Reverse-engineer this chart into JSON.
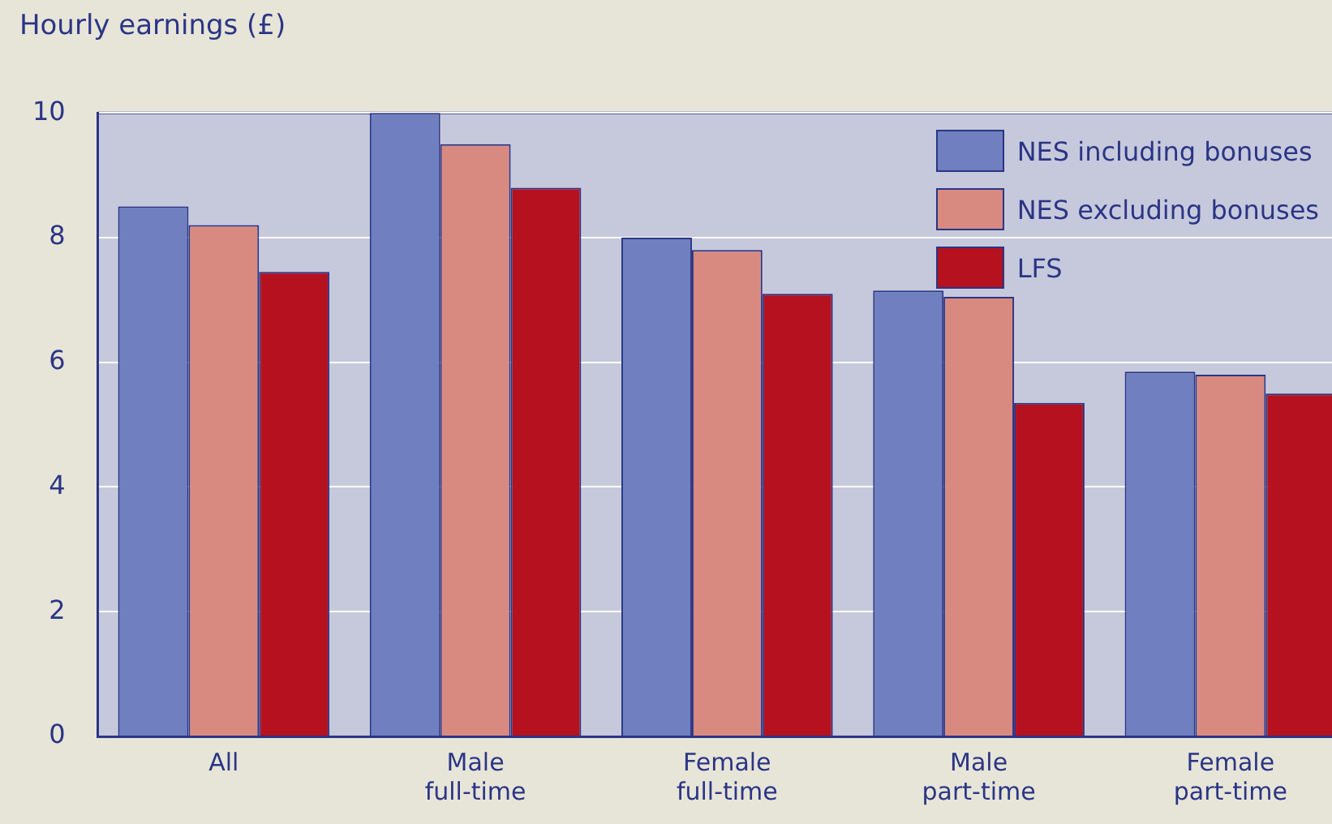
{
  "chart_data": {
    "type": "bar",
    "ylabel": "Hourly earnings (£)",
    "categories": [
      "All",
      "Male full-time",
      "Female full-time",
      "Male part-time",
      "Female part-time"
    ],
    "series": [
      {
        "name": "NES including bonuses",
        "color": "#6f7fbf",
        "values": [
          8.5,
          10,
          8,
          7.15,
          5.85
        ]
      },
      {
        "name": "NES excluding bonuses",
        "color": "#d98a80",
        "values": [
          8.2,
          9.5,
          7.8,
          7.05,
          5.8
        ]
      },
      {
        "name": "LFS",
        "color": "#b5111f",
        "values": [
          7.45,
          8.8,
          7.1,
          5.35,
          5.5
        ]
      }
    ],
    "ylim": [
      0,
      10
    ],
    "yticks": [
      0,
      2,
      4,
      6,
      8,
      10
    ],
    "grid": "y",
    "legend": "top right"
  }
}
